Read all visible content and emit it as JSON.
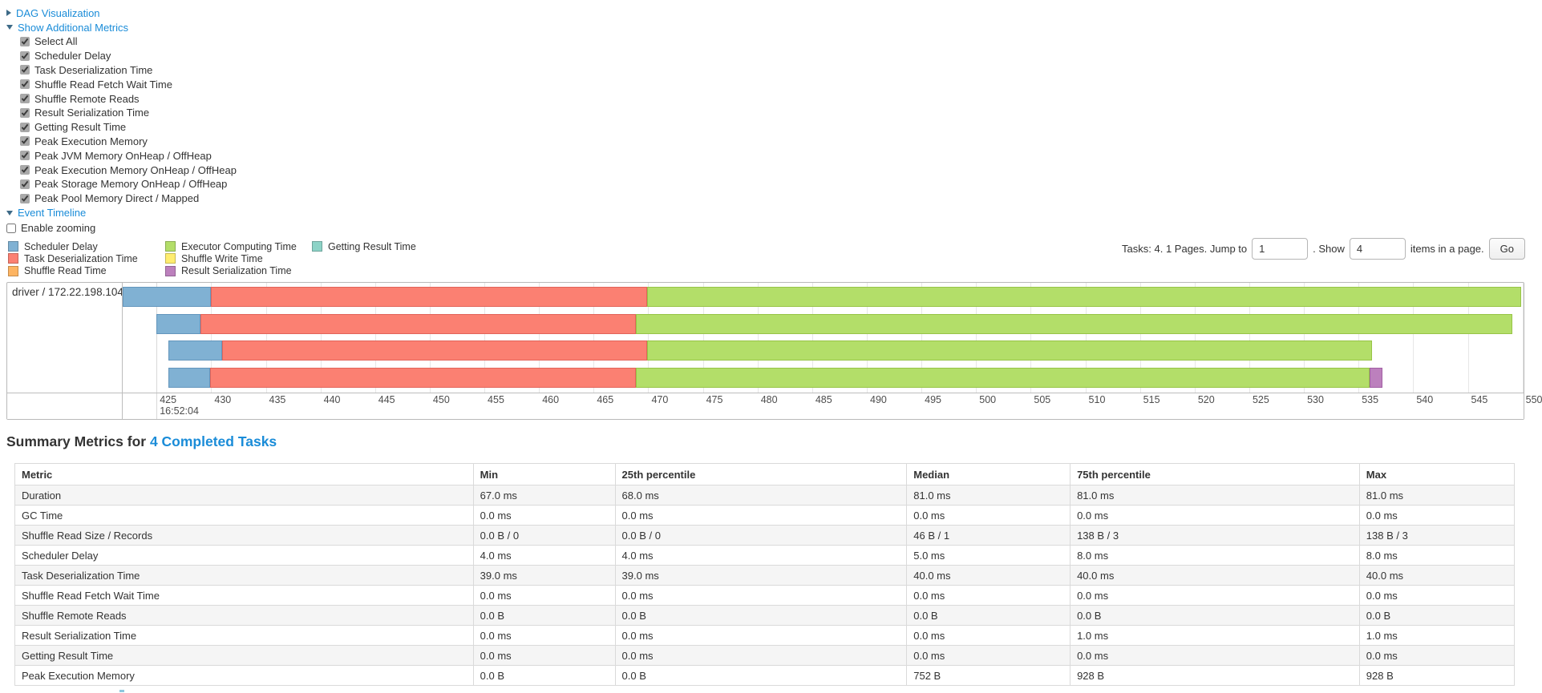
{
  "colors": {
    "link": "#1a8cd8",
    "scheduler_delay": "#80B1D3",
    "scheduler_delay_border": "#6496bd",
    "task_deserialization_time": "#FB8072",
    "task_deserialization_time_border": "#e2645a",
    "shuffle_read_time": "#FDB462",
    "executor_computing_time": "#B3DE69",
    "executor_computing_time_border": "#97c447",
    "shuffle_write_time": "#FFED6F",
    "result_serialization_time": "#BC80BD",
    "result_serialization_time_border": "#a15fa3",
    "getting_result_time": "#8DD3C7"
  },
  "controls": {
    "dag_label": "DAG Visualization",
    "metrics_label": "Show Additional Metrics",
    "metric_checkboxes": [
      "Select All",
      "Scheduler Delay",
      "Task Deserialization Time",
      "Shuffle Read Fetch Wait Time",
      "Shuffle Remote Reads",
      "Result Serialization Time",
      "Getting Result Time",
      "Peak Execution Memory",
      "Peak JVM Memory OnHeap / OffHeap",
      "Peak Execution Memory OnHeap / OffHeap",
      "Peak Storage Memory OnHeap / OffHeap",
      "Peak Pool Memory Direct / Mapped"
    ],
    "event_timeline_label": "Event Timeline",
    "enable_zooming_label": "Enable zooming"
  },
  "legend": {
    "items": [
      {
        "label": "Scheduler Delay",
        "color_key": "scheduler_delay"
      },
      {
        "label": "Task Deserialization Time",
        "color_key": "task_deserialization_time"
      },
      {
        "label": "Shuffle Read Time",
        "color_key": "shuffle_read_time"
      },
      {
        "label": "Executor Computing Time",
        "color_key": "executor_computing_time"
      },
      {
        "label": "Shuffle Write Time",
        "color_key": "shuffle_write_time"
      },
      {
        "label": "Result Serialization Time",
        "color_key": "result_serialization_time"
      },
      {
        "label": "Getting Result Time",
        "color_key": "getting_result_time"
      }
    ]
  },
  "pagination": {
    "tasks_text": "Tasks: 4. 1 Pages. Jump to",
    "jump_value": "1",
    "between_text": ". Show",
    "show_value": "4",
    "suffix_text": "items in a page.",
    "go_label": "Go"
  },
  "chart_data": {
    "type": "timeline",
    "group_label": "driver / 172.22.198.104",
    "axis": {
      "min": 421.9,
      "max": 550.1,
      "tick_start": 425,
      "tick_end": 550,
      "tick_step": 5,
      "major_tick": 425,
      "major_label": "16:52:04"
    },
    "tasks": [
      {
        "name": "task-0",
        "segments": [
          {
            "type": "scheduler_delay",
            "start": 421.9,
            "end": 430.0
          },
          {
            "type": "task_deserialization_time",
            "start": 430.0,
            "end": 469.9
          },
          {
            "type": "executor_computing_time",
            "start": 469.9,
            "end": 549.9
          }
        ]
      },
      {
        "name": "task-1",
        "segments": [
          {
            "type": "scheduler_delay",
            "start": 425.0,
            "end": 429.0
          },
          {
            "type": "task_deserialization_time",
            "start": 429.0,
            "end": 468.9
          },
          {
            "type": "executor_computing_time",
            "start": 468.9,
            "end": 549.1
          }
        ]
      },
      {
        "name": "task-2",
        "segments": [
          {
            "type": "scheduler_delay",
            "start": 426.1,
            "end": 431.0
          },
          {
            "type": "task_deserialization_time",
            "start": 431.0,
            "end": 469.9
          },
          {
            "type": "executor_computing_time",
            "start": 469.9,
            "end": 536.2
          }
        ]
      },
      {
        "name": "task-3",
        "segments": [
          {
            "type": "scheduler_delay",
            "start": 426.1,
            "end": 429.9
          },
          {
            "type": "task_deserialization_time",
            "start": 429.9,
            "end": 468.9
          },
          {
            "type": "executor_computing_time",
            "start": 468.9,
            "end": 536.0
          },
          {
            "type": "result_serialization_time",
            "start": 536.0,
            "end": 537.2
          }
        ]
      }
    ]
  },
  "summary": {
    "title_prefix": "Summary Metrics for ",
    "title_link": "4 Completed Tasks",
    "table": {
      "headers": [
        "Metric",
        "Min",
        "25th percentile",
        "Median",
        "75th percentile",
        "Max"
      ],
      "col_widths_pct": [
        30.57,
        9.46,
        19.45,
        10.9,
        19.29,
        10.33
      ],
      "rows": [
        {
          "metric": "Duration",
          "values": [
            "67.0 ms",
            "68.0 ms",
            "81.0 ms",
            "81.0 ms",
            "81.0 ms"
          ]
        },
        {
          "metric": "GC Time",
          "values": [
            "0.0 ms",
            "0.0 ms",
            "0.0 ms",
            "0.0 ms",
            "0.0 ms"
          ]
        },
        {
          "metric": "Shuffle Read Size / Records",
          "values": [
            "0.0 B / 0",
            "0.0 B / 0",
            "46 B / 1",
            "138 B / 3",
            "138 B / 3"
          ]
        },
        {
          "metric": "Scheduler Delay",
          "values": [
            "4.0 ms",
            "4.0 ms",
            "5.0 ms",
            "8.0 ms",
            "8.0 ms"
          ]
        },
        {
          "metric": "Task Deserialization Time",
          "values": [
            "39.0 ms",
            "39.0 ms",
            "40.0 ms",
            "40.0 ms",
            "40.0 ms"
          ]
        },
        {
          "metric": "Shuffle Read Fetch Wait Time",
          "values": [
            "0.0 ms",
            "0.0 ms",
            "0.0 ms",
            "0.0 ms",
            "0.0 ms"
          ]
        },
        {
          "metric": "Shuffle Remote Reads",
          "values": [
            "0.0 B",
            "0.0 B",
            "0.0 B",
            "0.0 B",
            "0.0 B"
          ]
        },
        {
          "metric": "Result Serialization Time",
          "values": [
            "0.0 ms",
            "0.0 ms",
            "0.0 ms",
            "1.0 ms",
            "1.0 ms"
          ]
        },
        {
          "metric": "Getting Result Time",
          "values": [
            "0.0 ms",
            "0.0 ms",
            "0.0 ms",
            "0.0 ms",
            "0.0 ms"
          ]
        },
        {
          "metric": "Peak Execution Memory",
          "values": [
            "0.0 B",
            "0.0 B",
            "752 B",
            "928 B",
            "928 B"
          ]
        }
      ]
    }
  }
}
